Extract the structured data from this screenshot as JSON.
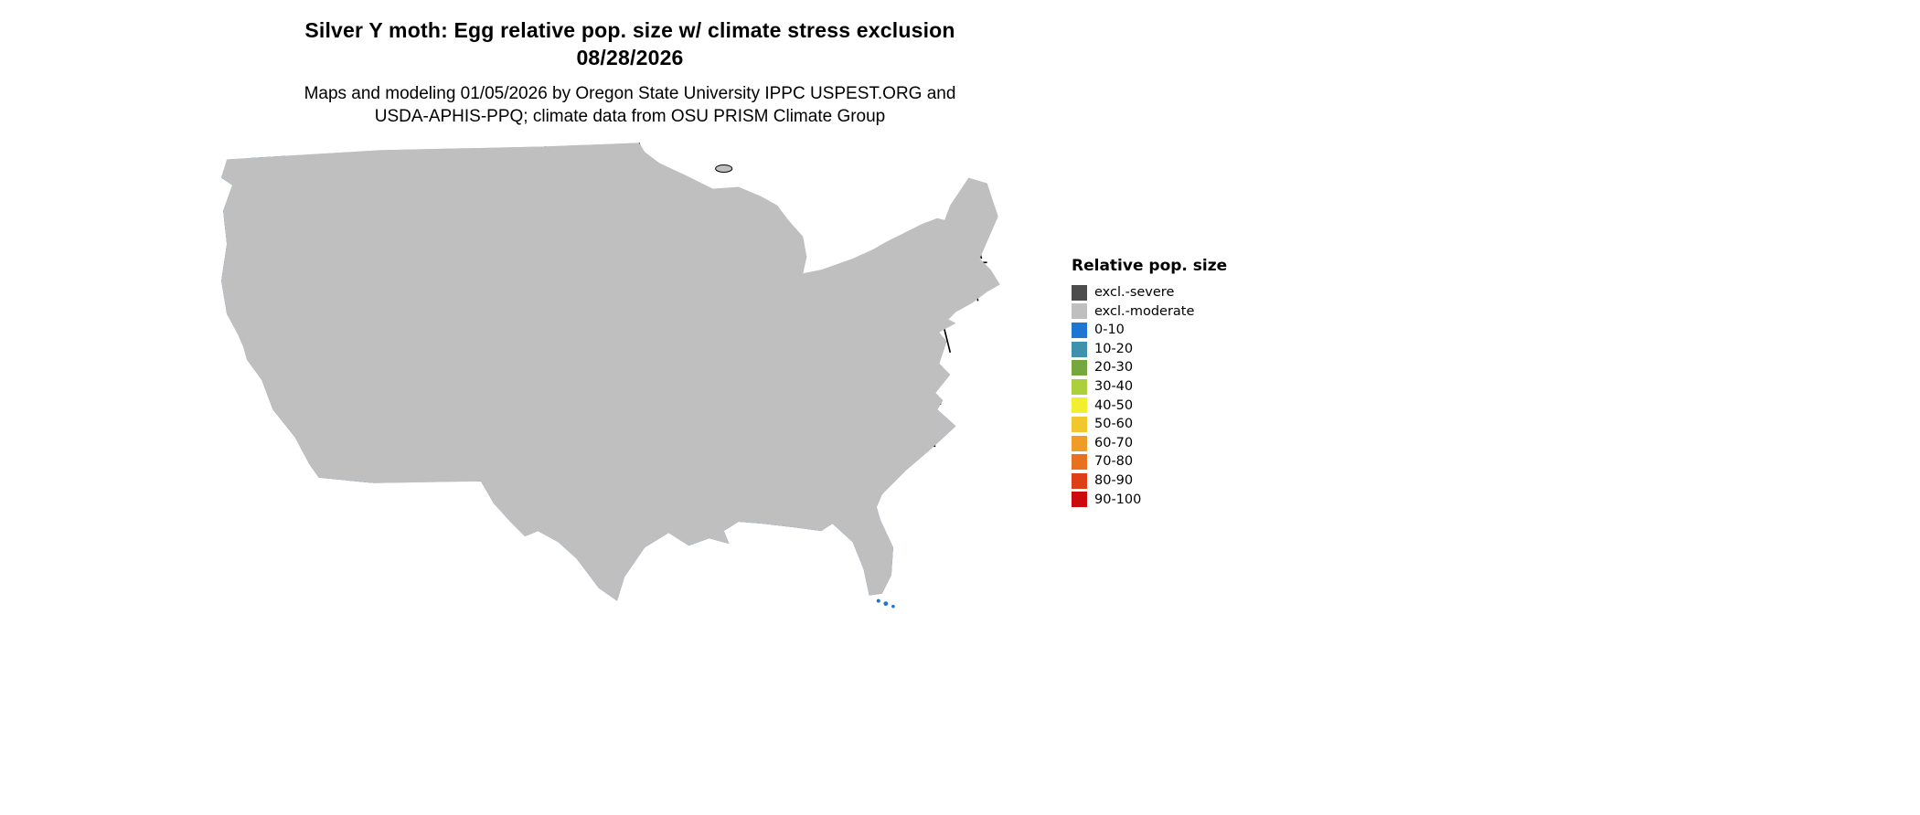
{
  "title": {
    "line1": "Silver Y moth: Egg relative pop. size w/ climate stress exclusion",
    "line2": "08/28/2026"
  },
  "subtitle": {
    "line1": "Maps and modeling 01/05/2026 by Oregon State University IPPC USPEST.ORG and",
    "line2": "USDA-APHIS-PPQ; climate data from OSU PRISM Climate Group"
  },
  "legend": {
    "title": "Relative pop. size",
    "items": [
      {
        "label": "excl.-severe",
        "color": "#4d4d4d"
      },
      {
        "label": "excl.-moderate",
        "color": "#bfbfbf"
      },
      {
        "label": "0-10",
        "color": "#1d76d2"
      },
      {
        "label": "10-20",
        "color": "#3f92ab"
      },
      {
        "label": "20-30",
        "color": "#76a73e"
      },
      {
        "label": "30-40",
        "color": "#accf3c"
      },
      {
        "label": "40-50",
        "color": "#f2ef2e"
      },
      {
        "label": "50-60",
        "color": "#f2c72e"
      },
      {
        "label": "60-70",
        "color": "#ef9d26"
      },
      {
        "label": "70-80",
        "color": "#e7711f"
      },
      {
        "label": "80-90",
        "color": "#dd3f16"
      },
      {
        "label": "90-100",
        "color": "#cc0a0e"
      }
    ]
  },
  "map": {
    "extent": "contiguous United States",
    "border_color": "#000000",
    "water_color": "#ffffff"
  }
}
